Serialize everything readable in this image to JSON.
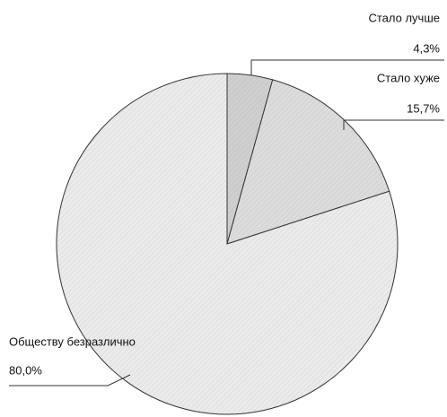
{
  "chart_data": {
    "type": "pie",
    "categories": [
      "Стало лучше",
      "Стало хуже",
      "Обществу безразлично"
    ],
    "values": [
      4.3,
      15.7,
      80.0
    ],
    "value_labels": [
      "4,3%",
      "15,7%",
      "80,0%"
    ],
    "colors": [
      "#cfcfcf",
      "#dcdcdc",
      "#ebebeb"
    ]
  }
}
